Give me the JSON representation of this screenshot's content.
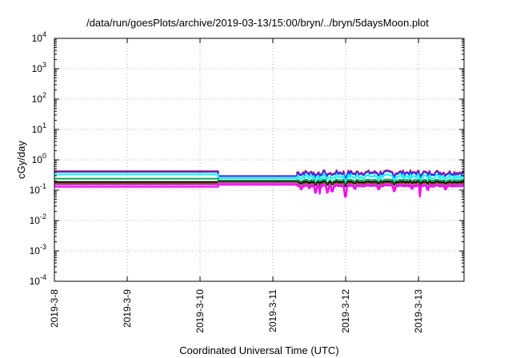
{
  "chart_data": {
    "type": "line",
    "title": "/data/run/goesPlots/archive/2019-03-13/15:00/bryn/../bryn/5daysMoon.plot",
    "xlabel": "Coordinated Universal Time (UTC)",
    "ylabel": "cGy/day",
    "y_scale": "log",
    "ylim": [
      0.0001,
      10000
    ],
    "xlim": [
      "2019-03-08T00:00",
      "2019-03-13T15:00"
    ],
    "grid": true,
    "legend": "none",
    "x_tick_labels": [
      "2019-3-8",
      "2019-3-9",
      "2019-3-10",
      "2019-3-11",
      "2019-3-12",
      "2019-3-13"
    ],
    "y_tick_labels": [
      {
        "base": "10",
        "exp": "4"
      },
      {
        "base": "10",
        "exp": "3"
      },
      {
        "base": "10",
        "exp": "2"
      },
      {
        "base": "10",
        "exp": "1"
      },
      {
        "base": "10",
        "exp": "0"
      },
      {
        "base": "10",
        "exp": "-1"
      },
      {
        "base": "10",
        "exp": "-2"
      },
      {
        "base": "10",
        "exp": "-3"
      },
      {
        "base": "10",
        "exp": "-4"
      }
    ],
    "data_ranges": {
      "flat_segment": [
        "2019-03-08T00:00",
        "2019-03-10T06:00"
      ],
      "gap_segment": [
        "2019-03-10T06:00",
        "2019-03-11T08:00"
      ],
      "variable_segment": [
        "2019-03-11T08:00",
        "2019-03-13T15:00"
      ]
    },
    "series": [
      {
        "color": "#ff0000",
        "flat": 0.42,
        "mid": 0.29,
        "late": 0.38
      },
      {
        "color": "#3333ff",
        "flat": 0.4,
        "mid": 0.29,
        "late": 0.36
      },
      {
        "color": "#00ffff",
        "flat": 0.33,
        "mid": 0.25,
        "late": 0.28
      },
      {
        "color": "#00aa55",
        "flat": 0.24,
        "mid": 0.21,
        "late": 0.22
      },
      {
        "color": "#000000",
        "flat": 0.185,
        "mid": 0.19,
        "late": 0.19
      },
      {
        "color": "#8b4513",
        "flat": 0.165,
        "mid": 0.18,
        "late": 0.17
      },
      {
        "color": "#cc44cc",
        "flat": 0.15,
        "mid": 0.17,
        "late": 0.155
      },
      {
        "color": "#ff00ff",
        "flat": 0.13,
        "mid": 0.15,
        "late": 0.14
      }
    ],
    "dips": [
      {
        "x": "2019-03-11T09:30",
        "factor": 0.8
      },
      {
        "x": "2019-03-11T12:00",
        "factor": 0.85
      },
      {
        "x": "2019-03-11T14:00",
        "factor": 0.6
      },
      {
        "x": "2019-03-11T15:30",
        "factor": 0.55
      },
      {
        "x": "2019-03-11T18:00",
        "factor": 0.6
      },
      {
        "x": "2019-03-11T19:30",
        "factor": 0.65
      },
      {
        "x": "2019-03-12T00:00",
        "factor": 0.45
      },
      {
        "x": "2019-03-12T03:00",
        "factor": 0.8
      },
      {
        "x": "2019-03-12T11:00",
        "factor": 0.8
      },
      {
        "x": "2019-03-12T16:00",
        "factor": 0.7
      },
      {
        "x": "2019-03-12T22:00",
        "factor": 0.8
      },
      {
        "x": "2019-03-13T00:30",
        "factor": 0.45
      },
      {
        "x": "2019-03-13T03:00",
        "factor": 0.75
      },
      {
        "x": "2019-03-13T09:00",
        "factor": 0.8
      }
    ]
  }
}
